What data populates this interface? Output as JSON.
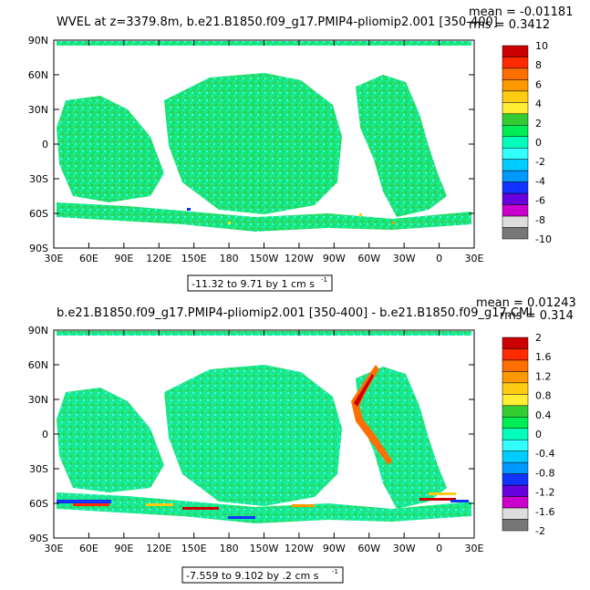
{
  "chart_data": [
    {
      "type": "heatmap",
      "title": "WVEL at z=3379.8m, b.e21.B1850.f09_g17.PMIP4-pliomip2.001 [350-400]",
      "stat_mean": "mean = -0.01181",
      "stat_rms": "rms = 0.3412",
      "x_ticks": [
        "30E",
        "60E",
        "90E",
        "120E",
        "150E",
        "180",
        "150W",
        "120W",
        "90W",
        "60W",
        "30W",
        "0",
        "30E"
      ],
      "y_ticks": [
        "90N",
        "60N",
        "30N",
        "0",
        "30S",
        "60S",
        "90S"
      ],
      "contour_info": "-11.32 to 9.71 by 1 cm s",
      "unit_exponent": "-1",
      "colorbar_labels": [
        "10",
        "8",
        "6",
        "4",
        "2",
        "0",
        "-2",
        "-4",
        "-6",
        "-8",
        "-10"
      ],
      "colorbar_colors": [
        "#cc0000",
        "#ff2a00",
        "#ff6e00",
        "#ff9900",
        "#ffcc11",
        "#ffee33",
        "#33cc33",
        "#00ee55",
        "#00ffbb",
        "#33ffff",
        "#00ccff",
        "#0099ff",
        "#1133ff",
        "#6600dd",
        "#cc00cc",
        "#dddddd",
        "#777777"
      ]
    },
    {
      "type": "heatmap",
      "title": "b.e21.B1850.f09_g17.PMIP4-pliomip2.001 [350-400] - b.e21.B1850.f09_g17.CMI",
      "stat_mean": "mean = 0.01243",
      "stat_rms": "rms = 0.314",
      "x_ticks": [
        "30E",
        "60E",
        "90E",
        "120E",
        "150E",
        "180",
        "150W",
        "120W",
        "90W",
        "60W",
        "30W",
        "0",
        "30E"
      ],
      "y_ticks": [
        "90N",
        "60N",
        "30N",
        "0",
        "30S",
        "60S",
        "90S"
      ],
      "contour_info": "-7.559 to 9.102 by .2 cm s",
      "unit_exponent": "-1",
      "colorbar_labels": [
        "2",
        "1.6",
        "1.2",
        "0.8",
        "0.4",
        "0",
        "-0.4",
        "-0.8",
        "-1.2",
        "-1.6",
        "-2"
      ],
      "colorbar_colors": [
        "#cc0000",
        "#ff2a00",
        "#ff6e00",
        "#ff9900",
        "#ffcc11",
        "#ffee33",
        "#33cc33",
        "#00ee55",
        "#00ffbb",
        "#33ffff",
        "#00ccff",
        "#0099ff",
        "#1133ff",
        "#6600dd",
        "#cc00cc",
        "#dddddd",
        "#777777"
      ]
    }
  ]
}
